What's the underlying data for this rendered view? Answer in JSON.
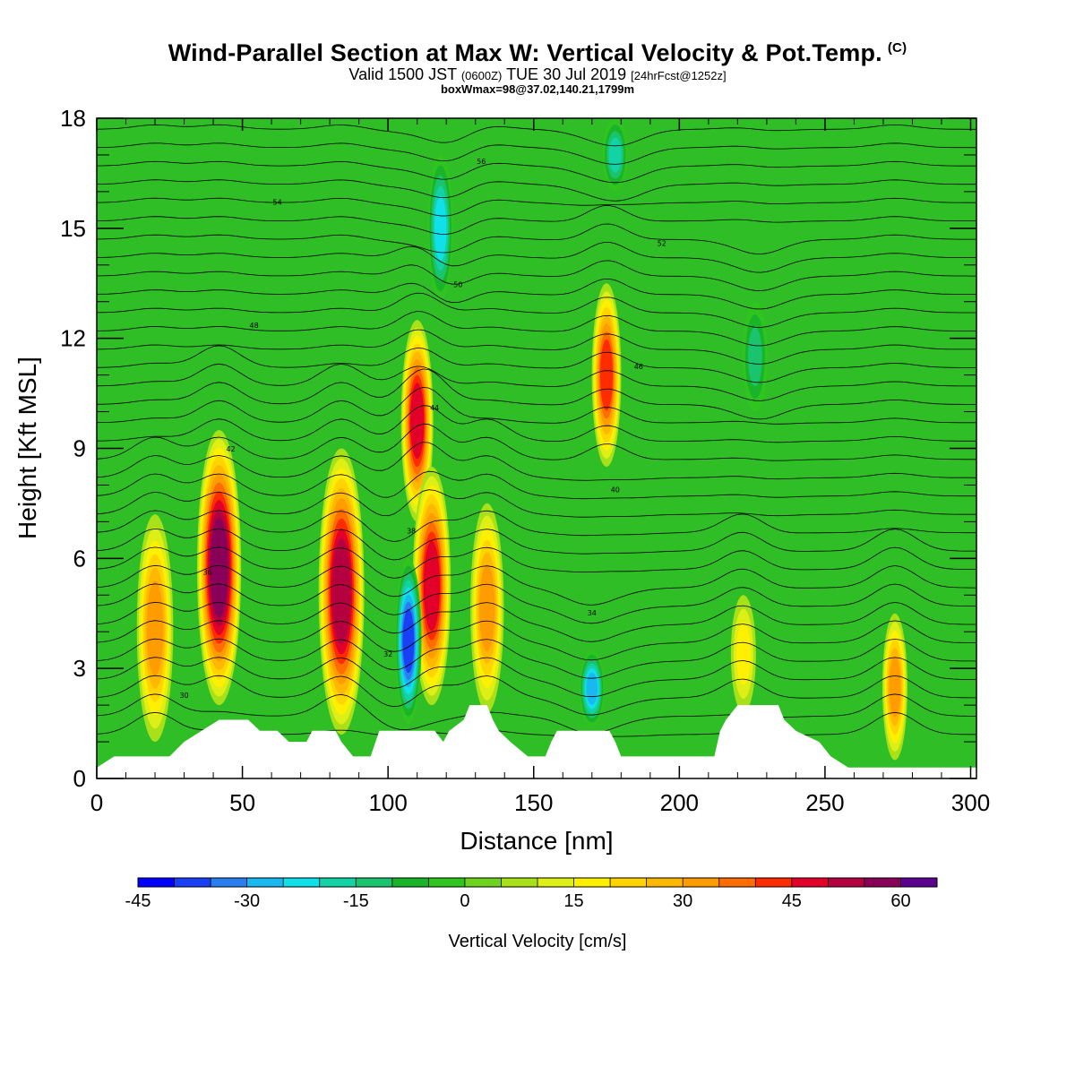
{
  "header": {
    "title": "Wind-Parallel Section at Max W: Vertical Velocity & Pot.Temp.",
    "copyright": "(C)",
    "valid_main": "Valid 1500 JST",
    "valid_utc": "(0600Z)",
    "valid_date": "TUE 30 Jul 2019",
    "forecast": "[24hrFcst@1252z]",
    "box_info": "boxWmax=98@37.02,140.21,1799m"
  },
  "colors": {
    "palette": [
      "#0000ff",
      "#1940f5",
      "#2a7ff0",
      "#19b8ee",
      "#10e0ea",
      "#12d2a6",
      "#1ac46e",
      "#1ab42a",
      "#30c41e",
      "#6ed21e",
      "#a8e01a",
      "#ddef14",
      "#fff000",
      "#ffd400",
      "#ffb800",
      "#ff9c00",
      "#ff6c00",
      "#ff2c00",
      "#e2002a",
      "#b4003e",
      "#880058",
      "#5c0090"
    ],
    "background": "#2fbe25",
    "terrain": "#ffffff"
  },
  "chart_data": {
    "type": "heatmap",
    "xlabel": "Distance [nm]",
    "ylabel": "Height [Kft MSL]",
    "xlim": [
      0,
      302
    ],
    "ylim": [
      0,
      18
    ],
    "xticks": [
      0,
      50,
      100,
      150,
      200,
      250,
      300
    ],
    "yticks": [
      0,
      3,
      6,
      9,
      12,
      15,
      18
    ],
    "grid": false,
    "colorbar": {
      "title": "Vertical Velocity [cm/s]",
      "min": -45,
      "max": 70,
      "step": 5,
      "tick_values": [
        -45,
        -30,
        -15,
        0,
        15,
        30,
        45,
        60
      ],
      "tick_labels": [
        "-45",
        "-30",
        "-15",
        "0",
        "15",
        "30",
        "45",
        "60"
      ],
      "placement": "bottom"
    },
    "updrafts": [
      {
        "x": 20,
        "z_bottom": 1.0,
        "z_top": 7.2,
        "w_max": 30
      },
      {
        "x": 42,
        "z_bottom": 2.0,
        "z_top": 9.5,
        "w_max": 55
      },
      {
        "x": 84,
        "z_bottom": 1.2,
        "z_top": 9.0,
        "w_max": 52
      },
      {
        "x": 110,
        "z_bottom": 7.0,
        "z_top": 12.5,
        "w_max": 45
      },
      {
        "x": 115,
        "z_bottom": 2.0,
        "z_top": 8.5,
        "w_max": 48
      },
      {
        "x": 134,
        "z_bottom": 1.8,
        "z_top": 7.5,
        "w_max": 30
      },
      {
        "x": 175,
        "z_bottom": 8.5,
        "z_top": 13.5,
        "w_max": 42
      },
      {
        "x": 222,
        "z_bottom": 1.8,
        "z_top": 5.0,
        "w_max": 18
      },
      {
        "x": 274,
        "z_bottom": 0.5,
        "z_top": 4.5,
        "w_max": 30
      }
    ],
    "downdrafts": [
      {
        "x": 107,
        "z_bottom": 1.5,
        "z_top": 6.0,
        "w_min": -42
      },
      {
        "x": 170,
        "z_bottom": 1.4,
        "z_top": 3.5,
        "w_min": -30
      },
      {
        "x": 118,
        "z_bottom": 13.0,
        "z_top": 17.0,
        "w_min": -28
      },
      {
        "x": 178,
        "z_bottom": 16.0,
        "z_top": 18.0,
        "w_min": -20
      },
      {
        "x": 226,
        "z_bottom": 10.0,
        "z_top": 13.0,
        "w_min": -15
      }
    ],
    "theta_contour_labels": [
      "30",
      "32",
      "34",
      "36",
      "38",
      "40",
      "42",
      "44",
      "46",
      "48",
      "50",
      "52",
      "54",
      "56"
    ],
    "terrain_kft": [
      [
        0,
        0.3
      ],
      [
        6,
        0.6
      ],
      [
        25,
        0.6
      ],
      [
        30,
        1.0
      ],
      [
        36,
        1.3
      ],
      [
        42,
        1.6
      ],
      [
        52,
        1.6
      ],
      [
        56,
        1.3
      ],
      [
        62,
        1.3
      ],
      [
        66,
        1.0
      ],
      [
        72,
        1.0
      ],
      [
        74,
        1.3
      ],
      [
        82,
        1.3
      ],
      [
        84,
        1.0
      ],
      [
        88,
        0.6
      ],
      [
        94,
        0.6
      ],
      [
        97,
        1.3
      ],
      [
        116,
        1.3
      ],
      [
        119,
        1.0
      ],
      [
        121,
        1.3
      ],
      [
        126,
        1.6
      ],
      [
        128,
        2.0
      ],
      [
        134,
        2.0
      ],
      [
        136,
        1.6
      ],
      [
        138,
        1.3
      ],
      [
        142,
        1.0
      ],
      [
        148,
        0.6
      ],
      [
        154,
        0.6
      ],
      [
        156,
        1.0
      ],
      [
        158,
        1.3
      ],
      [
        176,
        1.3
      ],
      [
        178,
        1.0
      ],
      [
        180,
        0.6
      ],
      [
        212,
        0.6
      ],
      [
        214,
        1.3
      ],
      [
        216,
        1.6
      ],
      [
        220,
        2.0
      ],
      [
        234,
        2.0
      ],
      [
        236,
        1.6
      ],
      [
        240,
        1.3
      ],
      [
        248,
        1.0
      ],
      [
        252,
        0.6
      ],
      [
        258,
        0.3
      ],
      [
        302,
        0.3
      ]
    ]
  }
}
